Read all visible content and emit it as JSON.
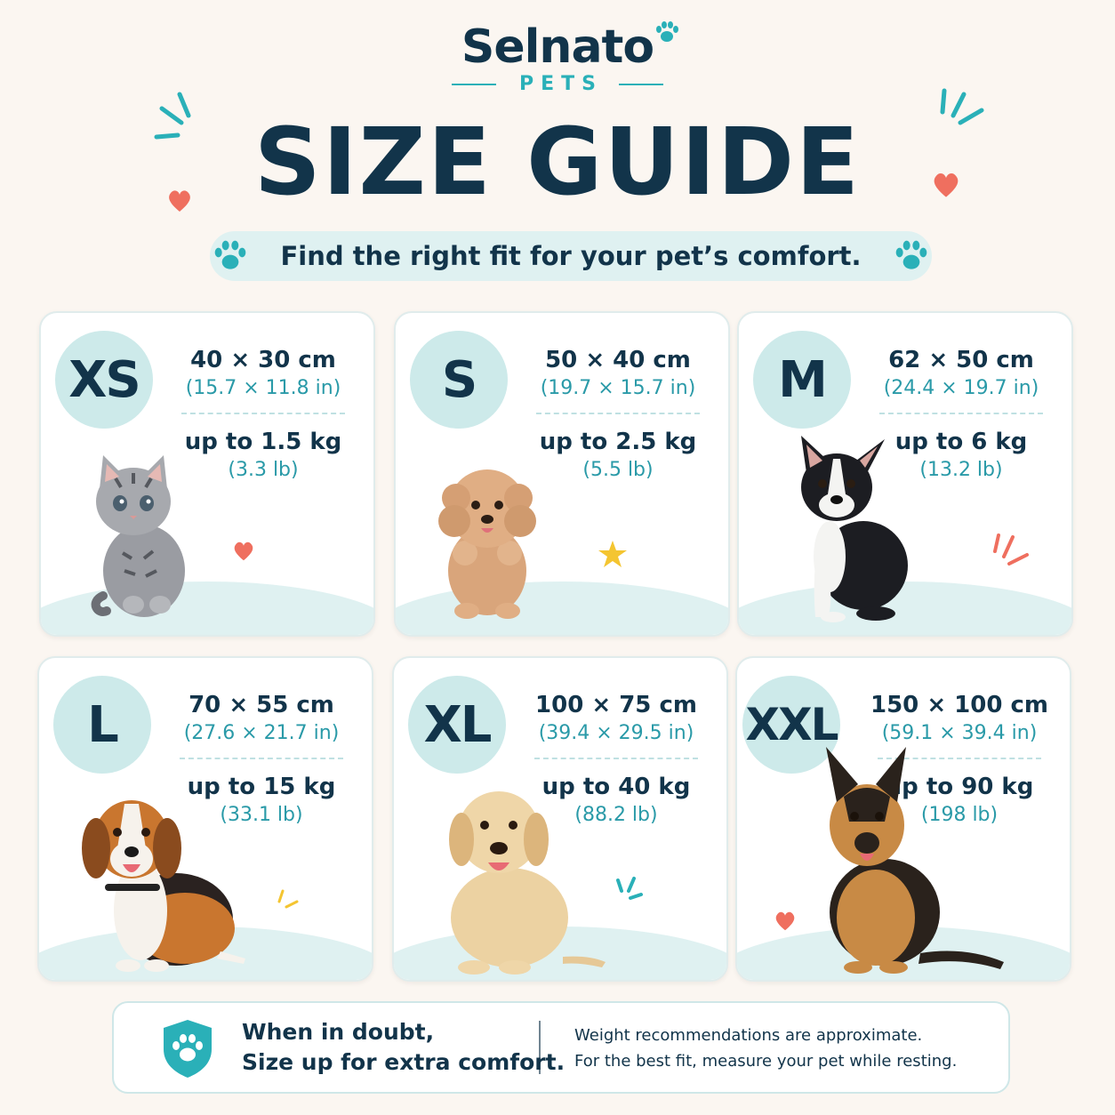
{
  "brand": {
    "name": "Selnato",
    "sub": "PETS"
  },
  "title": "SIZE GUIDE",
  "tagline": "Find the right fit for your pet’s comfort.",
  "sizes": [
    {
      "label": "XS",
      "dimensions": "40 × 30 cm",
      "dimensions_in": "(15.7 × 11.8 in)",
      "weight": "up to 1.5 kg",
      "weight_lb": "(3.3 lb)",
      "pet": "kitten"
    },
    {
      "label": "S",
      "dimensions": "50 × 40 cm",
      "dimensions_in": "(19.7 × 15.7 in)",
      "weight": "up to 2.5 kg",
      "weight_lb": "(5.5 lb)",
      "pet": "poodle puppy"
    },
    {
      "label": "M",
      "dimensions": "62 × 50 cm",
      "dimensions_in": "(24.4 × 19.7 in)",
      "weight": "up to 6 kg",
      "weight_lb": "(13.2 lb)",
      "pet": "boston terrier"
    },
    {
      "label": "L",
      "dimensions": "70 × 55 cm",
      "dimensions_in": "(27.6 × 21.7 in)",
      "weight": "up to 15 kg",
      "weight_lb": "(33.1 lb)",
      "pet": "beagle"
    },
    {
      "label": "XL",
      "dimensions": "100 × 75 cm",
      "dimensions_in": "(39.4 × 29.5 in)",
      "weight": "up to 40 kg",
      "weight_lb": "(88.2 lb)",
      "pet": "labrador"
    },
    {
      "label": "XXL",
      "dimensions": "150 × 100 cm",
      "dimensions_in": "(59.1 × 39.4 in)",
      "weight": "up to 90 kg",
      "weight_lb": "(198 lb)",
      "pet": "german shepherd"
    }
  ],
  "footer": {
    "tip_line1": "When in doubt,",
    "tip_line2": "Size up for extra comfort.",
    "note_line1": "Weight recommendations are approximate.",
    "note_line2": "For the best fit, measure your pet while resting."
  },
  "colors": {
    "navy": "#12344a",
    "teal": "#2ab0b8",
    "mint": "#dff1f1",
    "coral": "#ef6f5f",
    "cream": "#fbf6f1"
  }
}
